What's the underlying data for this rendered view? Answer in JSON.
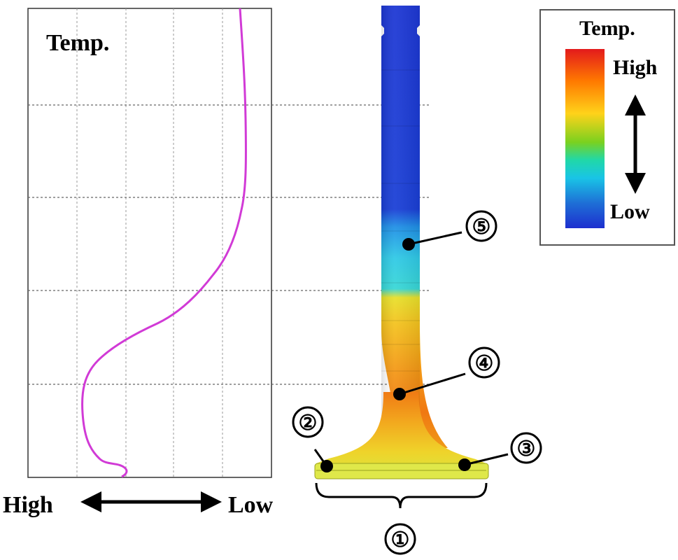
{
  "plot": {
    "title": "Temp.",
    "x_axis_left": "High",
    "x_axis_right": "Low"
  },
  "legend": {
    "title": "Temp.",
    "high": "High",
    "low": "Low",
    "gradient_colors": [
      "#e31a1c",
      "#ff7a00",
      "#ffd21a",
      "#7ad11f",
      "#20d8a8",
      "#19c4e6",
      "#1e6fd6",
      "#1d2fcf"
    ]
  },
  "valve": {
    "labels": [
      "①",
      "②",
      "③",
      "④",
      "⑤"
    ],
    "colors": {
      "stem_cold": "#1a3fd6",
      "cyan": "#2fd4e6",
      "yellow": "#f3dc2a",
      "orange": "#f47a12",
      "seat": "#d8e84a"
    }
  }
}
